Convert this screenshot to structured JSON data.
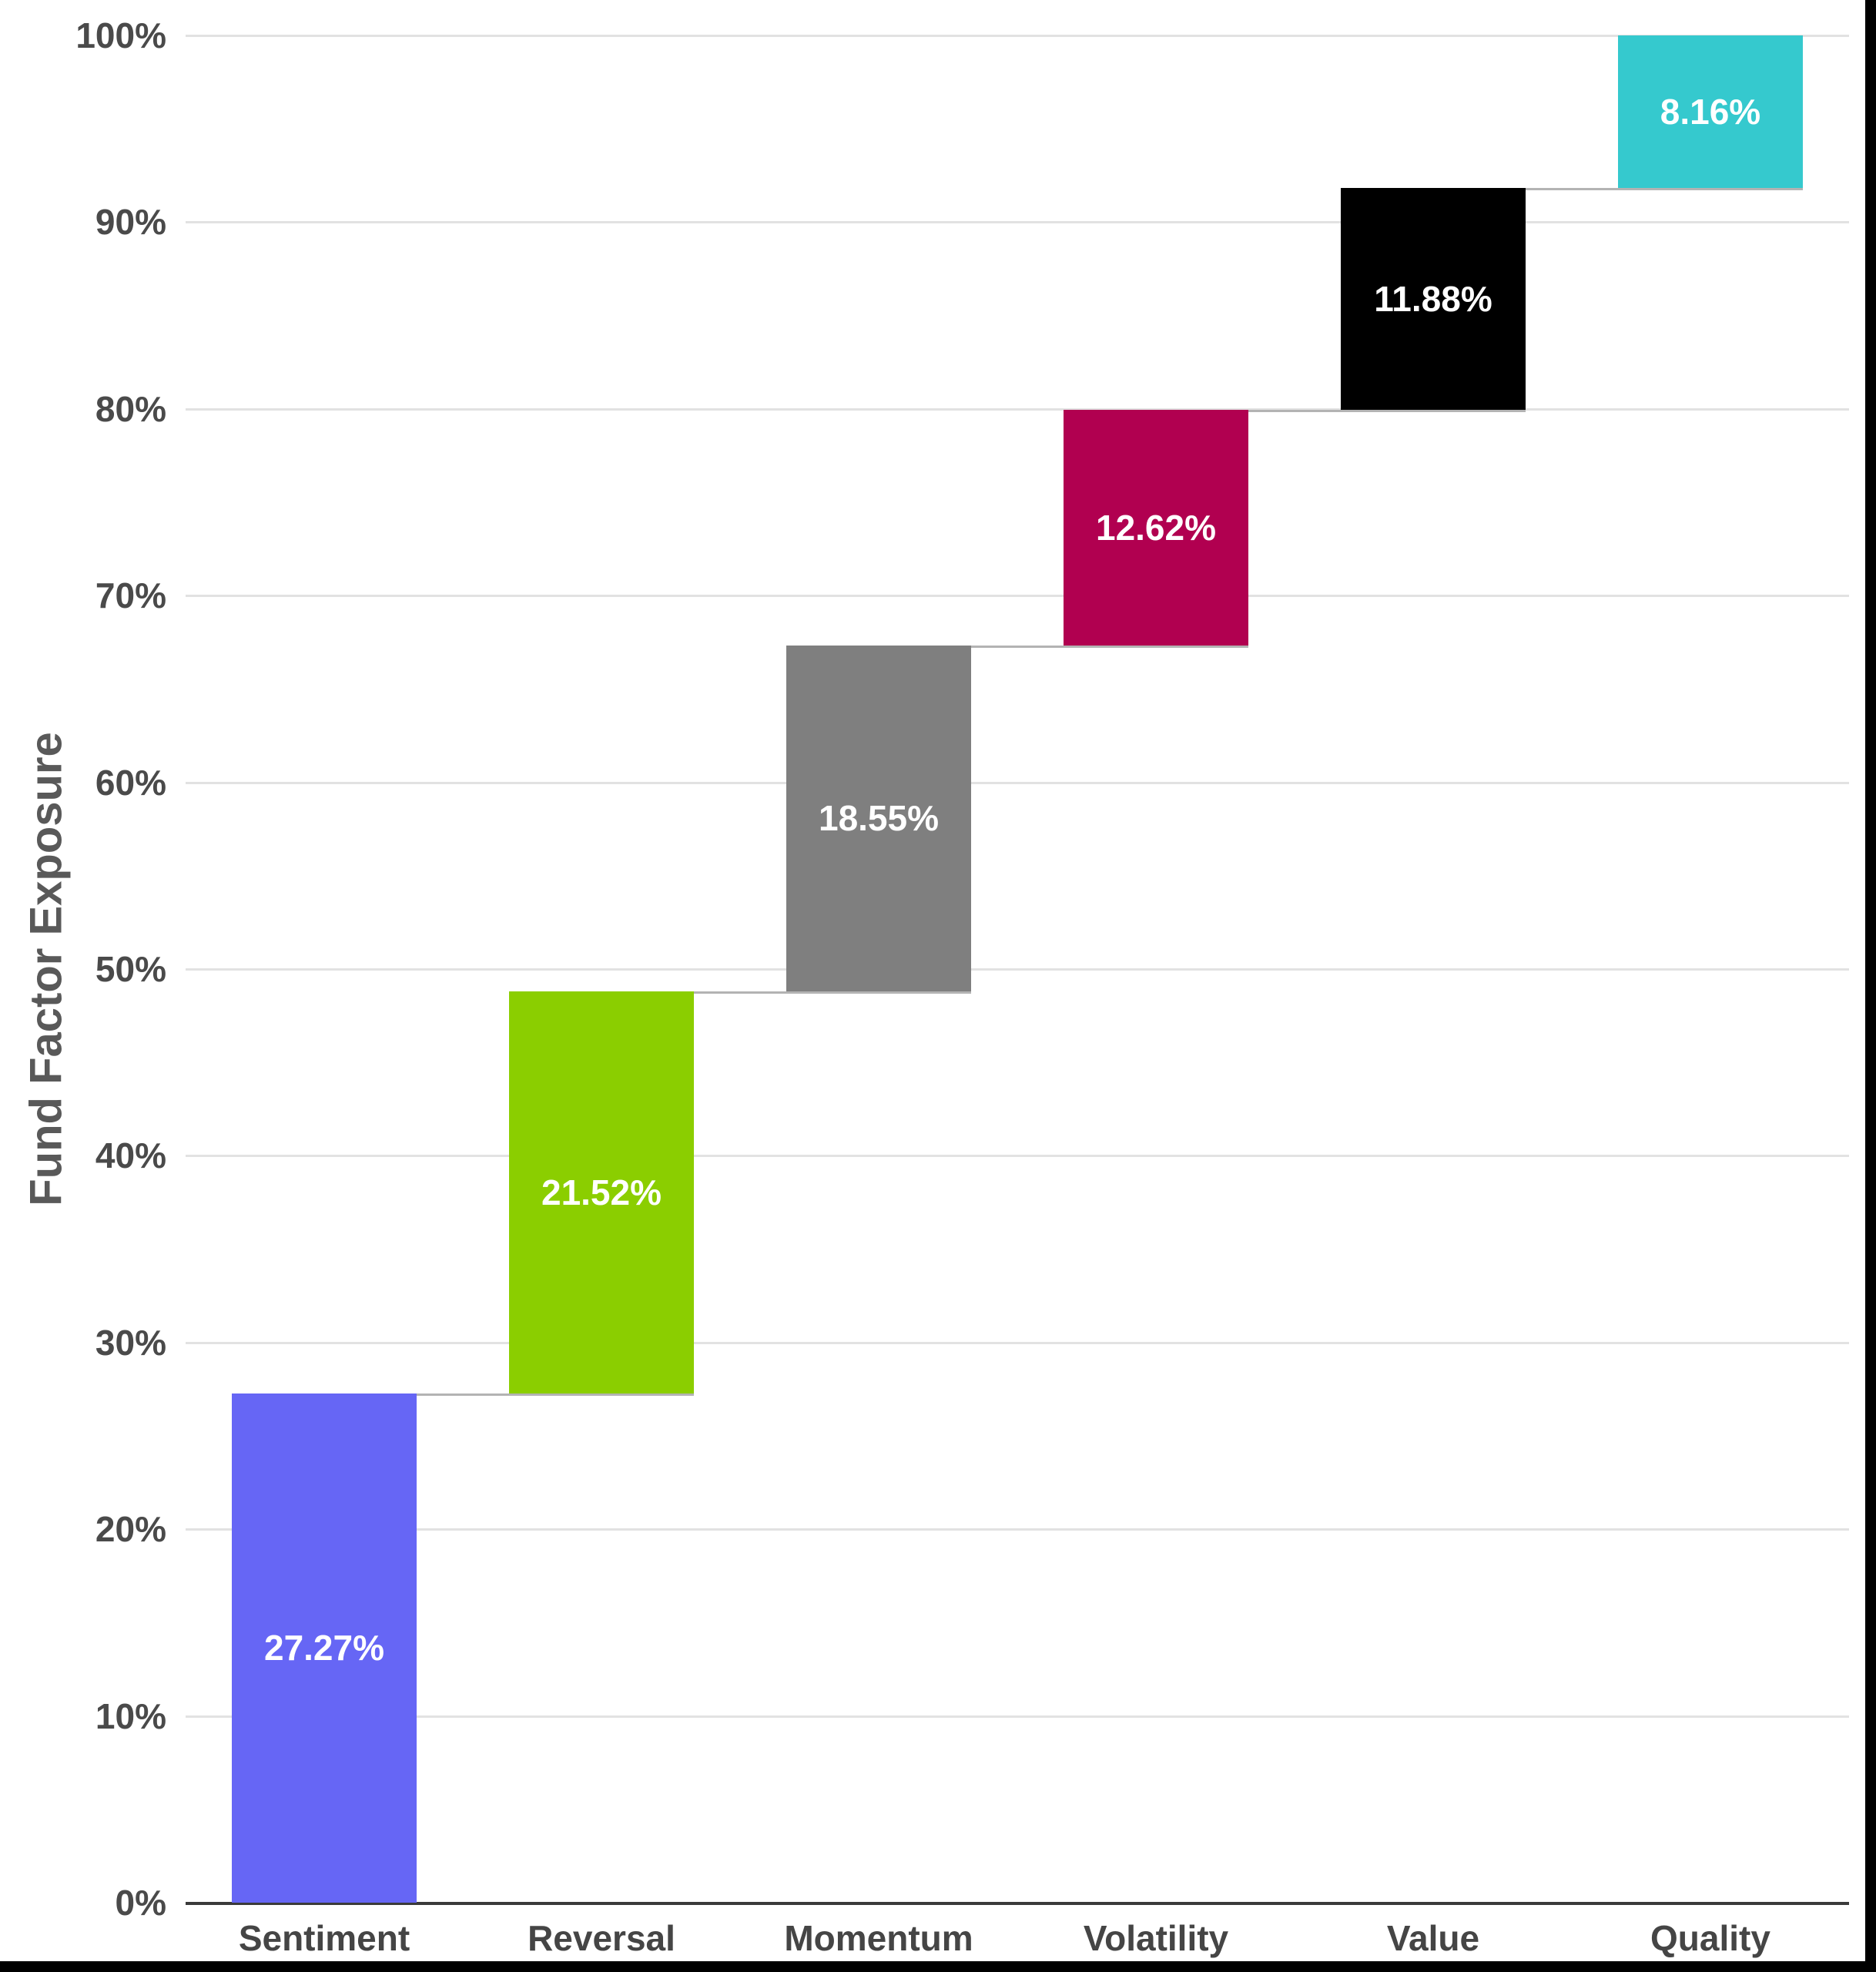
{
  "chart_data": {
    "type": "bar",
    "subtype": "waterfall",
    "title": "",
    "xlabel": "",
    "ylabel": "Fund Factor Exposure",
    "categories": [
      "Sentiment",
      "Reversal",
      "Momentum",
      "Volatility",
      "Value",
      "Quality"
    ],
    "values": [
      27.27,
      21.52,
      18.55,
      12.62,
      11.88,
      8.16
    ],
    "value_labels": [
      "27.27%",
      "21.52%",
      "18.55%",
      "12.62%",
      "11.88%",
      "8.16%"
    ],
    "cumulative_start": [
      0,
      27.27,
      48.79,
      67.34,
      79.96,
      91.84
    ],
    "cumulative_end": [
      27.27,
      48.79,
      67.34,
      79.96,
      91.84,
      100.0
    ],
    "bar_colors": [
      "#6666f5",
      "#8bce00",
      "#7f7f7f",
      "#b10050",
      "#000000",
      "#35c9ce"
    ],
    "ylim": [
      0,
      100
    ],
    "ytick_step": 10,
    "ytick_labels": [
      "0%",
      "10%",
      "20%",
      "30%",
      "40%",
      "50%",
      "60%",
      "70%",
      "80%",
      "90%",
      "100%"
    ],
    "grid": "horizontal",
    "legend": "none",
    "colors": {
      "background": "#ffffff",
      "grid": "#e2e2e2",
      "axis_line": "#3a3a3a",
      "connector": "#b3b3b3",
      "tick_label": "#4a4a4a",
      "category_label": "#454545",
      "value_label": "#ffffff",
      "axis_title": "#595959",
      "frame_edge": "#000000"
    }
  }
}
